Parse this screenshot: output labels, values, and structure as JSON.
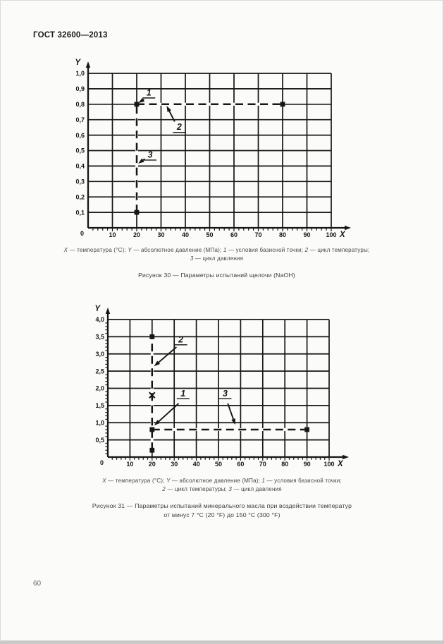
{
  "header": {
    "title": "ГОСТ 32600—2013"
  },
  "footer": {
    "page_number": "60"
  },
  "colors": {
    "ink": "#161616",
    "caption": "#474747",
    "paper": "#fbfbfa"
  },
  "chart_data": [
    {
      "id": "fig30",
      "type": "scatter",
      "xlabel": "X",
      "ylabel": "Y",
      "x_axis": {
        "min": 0,
        "max": 100,
        "major_step": 10,
        "minor_step": 2,
        "origin_label": "0",
        "tick_labels": [
          "10",
          "20",
          "30",
          "40",
          "50",
          "60",
          "70",
          "80",
          "90",
          "100"
        ]
      },
      "y_axis": {
        "min": 0,
        "max": 1.0,
        "major_step": 0.1,
        "minor_step": null,
        "tick_labels": [
          "1,0",
          "0,9",
          "0,8",
          "0,7",
          "0,6",
          "0,5",
          "0,4",
          "0,3",
          "0,2",
          "0,1"
        ]
      },
      "points": [
        {
          "x": 20,
          "y": 0.8,
          "marker": "square"
        },
        {
          "x": 80,
          "y": 0.8,
          "marker": "square"
        },
        {
          "x": 20,
          "y": 0.1,
          "marker": "square"
        }
      ],
      "cycle_lines": [
        {
          "name": "temperature-cycle",
          "from": [
            20,
            0.8
          ],
          "to": [
            80,
            0.8
          ]
        },
        {
          "name": "pressure-cycle",
          "from": [
            20,
            0.1
          ],
          "to": [
            20,
            0.8
          ]
        }
      ],
      "annotations": [
        {
          "label": "1",
          "lx": 25.0,
          "ly": 0.875,
          "ax": 23.0,
          "ay": 0.832,
          "tx": 20.7,
          "ty": 0.808
        },
        {
          "label": "2",
          "lx": 37.5,
          "ly": 0.652,
          "ax": 35.6,
          "ay": 0.688,
          "tx": 32.3,
          "ty": 0.79
        },
        {
          "label": "3",
          "lx": 25.5,
          "ly": 0.473,
          "ax": 23.3,
          "ay": 0.446,
          "tx": 20.6,
          "ty": 0.416
        }
      ],
      "caption_lines": [
        [
          {
            "t": "X",
            "i": true
          },
          {
            "t": " — температура (°С); ",
            "i": false
          },
          {
            "t": "Y",
            "i": true
          },
          {
            "t": " — абсолютное давление (МПа); ",
            "i": false
          },
          {
            "t": "1",
            "i": true
          },
          {
            "t": " — условия базисной точки; ",
            "i": false
          },
          {
            "t": "2",
            "i": true
          },
          {
            "t": " — цикл температуры;",
            "i": false
          }
        ],
        [
          {
            "t": "3",
            "i": true
          },
          {
            "t": " — цикл давления",
            "i": false
          }
        ]
      ],
      "title_lines": [
        "Рисунок 30 — Параметры испытаний щелочи (NaOH)"
      ]
    },
    {
      "id": "fig31",
      "type": "scatter",
      "xlabel": "X",
      "ylabel": "Y",
      "x_axis": {
        "min": 0,
        "max": 100,
        "major_step": 10,
        "minor_step": 2,
        "origin_label": "0",
        "tick_labels": [
          "10",
          "20",
          "30",
          "40",
          "50",
          "60",
          "70",
          "80",
          "90",
          "100"
        ]
      },
      "y_axis": {
        "min": 0,
        "max": 4.0,
        "major_step": 0.5,
        "minor_step": 0.1,
        "tick_labels": [
          "4,0",
          "3,5",
          "3,0",
          "2,5",
          "2,0",
          "1,5",
          "1,0",
          "0,5"
        ]
      },
      "points": [
        {
          "x": 20,
          "y": 3.5,
          "marker": "square"
        },
        {
          "x": 20,
          "y": 1.8,
          "marker": "cross"
        },
        {
          "x": 20,
          "y": 0.8,
          "marker": "square"
        },
        {
          "x": 20,
          "y": 0.2,
          "marker": "square"
        },
        {
          "x": 90,
          "y": 0.8,
          "marker": "square"
        }
      ],
      "cycle_lines": [
        {
          "name": "pressure-cycle",
          "from": [
            20,
            0.2
          ],
          "to": [
            20,
            3.5
          ]
        },
        {
          "name": "temperature-cycle",
          "from": [
            20,
            0.8
          ],
          "to": [
            90,
            0.8
          ]
        }
      ],
      "annotations": [
        {
          "label": "2",
          "lx": 33.0,
          "ly": 3.42,
          "ax": 31.0,
          "ay": 3.2,
          "tx": 20.9,
          "ty": 2.64
        },
        {
          "label": "1",
          "lx": 34.0,
          "ly": 1.85,
          "ax": 32.0,
          "ay": 1.56,
          "tx": 21.0,
          "ty": 0.92
        },
        {
          "label": "3",
          "lx": 53.0,
          "ly": 1.85,
          "ax": 54.2,
          "ay": 1.56,
          "tx": 57.6,
          "ty": 0.94
        }
      ],
      "caption_lines": [
        [
          {
            "t": "X",
            "i": true
          },
          {
            "t": " — температура (°С); ",
            "i": false
          },
          {
            "t": "Y",
            "i": true
          },
          {
            "t": " — абсолютное давление (МПа); ",
            "i": false
          },
          {
            "t": "1",
            "i": true
          },
          {
            "t": " — условия базисной точки;",
            "i": false
          }
        ],
        [
          {
            "t": "2",
            "i": true
          },
          {
            "t": " — цикл температуры; ",
            "i": false
          },
          {
            "t": "3",
            "i": true
          },
          {
            "t": " — цикл давления",
            "i": false
          }
        ]
      ],
      "title_lines": [
        "Рисунок 31 — Параметры испытаний минерального масла при воздействии температур",
        "от минус 7 °С (20 °F) до 150 °С (300 °F)"
      ]
    }
  ]
}
